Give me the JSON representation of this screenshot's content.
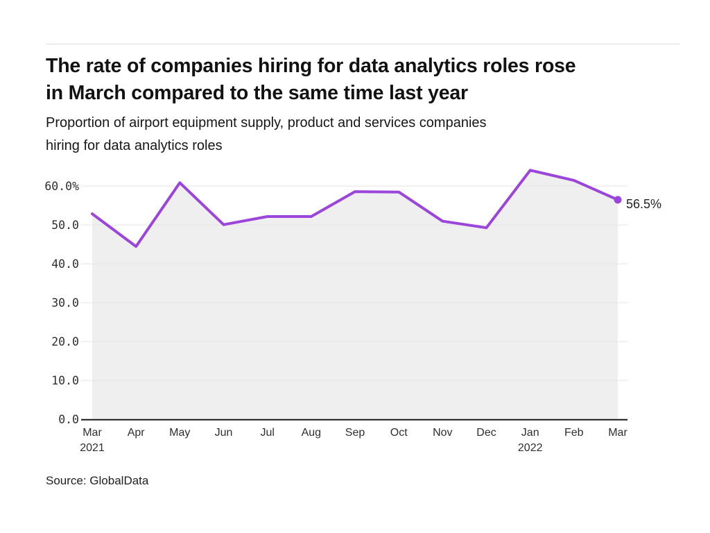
{
  "page": {
    "title_line1": "The rate of companies hiring for data analytics roles rose",
    "title_line2": "in March compared to the same time last year",
    "subtitle_line1": "Proportion of airport equipment supply, product and services companies",
    "subtitle_line2": "hiring for data analytics roles",
    "source": "Source: GlobalData"
  },
  "colors": {
    "line": "#9b45db",
    "marker": "#9b45db",
    "area_fill": "#efefef",
    "grid": "#e5e5e5",
    "axis": "#191919",
    "tick_text": "#2e2e2e",
    "label_text": "#222222"
  },
  "chart_data": {
    "type": "line",
    "title": "The rate of companies hiring for data analytics roles rose in March compared to the same time last year",
    "subtitle": "Proportion of airport equipment supply, product and services companies hiring for data analytics roles",
    "categories": [
      "Mar 2021",
      "Apr 2021",
      "May 2021",
      "Jun 2021",
      "Jul 2021",
      "Aug 2021",
      "Sep 2021",
      "Oct 2021",
      "Nov 2021",
      "Dec 2021",
      "Jan 2022",
      "Feb 2022",
      "Mar 2022"
    ],
    "x_tick_labels": [
      "Mar",
      "Apr",
      "May",
      "Jun",
      "Jul",
      "Aug",
      "Sep",
      "Oct",
      "Nov",
      "Dec",
      "Jan",
      "Feb",
      "Mar"
    ],
    "x_year_labels": [
      {
        "index": 0,
        "label": "2021"
      },
      {
        "index": 10,
        "label": "2022"
      }
    ],
    "series": [
      {
        "name": "Proportion of companies hiring for data analytics roles (%)",
        "values": [
          52.9,
          44.5,
          60.9,
          50.1,
          52.2,
          52.2,
          58.6,
          58.5,
          51.0,
          49.3,
          64.1,
          61.5,
          56.5
        ]
      }
    ],
    "end_label": "56.5%",
    "y_ticks": [
      {
        "value": 60,
        "label": "60.0%"
      },
      {
        "value": 50,
        "label": "50.0"
      },
      {
        "value": 40,
        "label": "40.0"
      },
      {
        "value": 30,
        "label": "30.0"
      },
      {
        "value": 20,
        "label": "20.0"
      },
      {
        "value": 10,
        "label": "10.0"
      },
      {
        "value": 0,
        "label": "0.0"
      }
    ],
    "ylim": [
      0,
      65
    ],
    "xlabel": "",
    "ylabel": "",
    "grid": "horizontal",
    "legend": "none",
    "area_filled": true
  }
}
